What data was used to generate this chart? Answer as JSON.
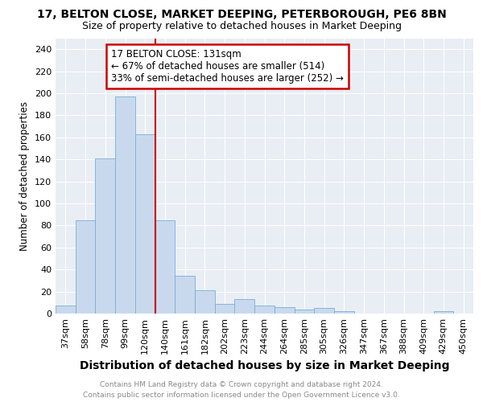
{
  "title1": "17, BELTON CLOSE, MARKET DEEPING, PETERBOROUGH, PE6 8BN",
  "title2": "Size of property relative to detached houses in Market Deeping",
  "xlabel": "Distribution of detached houses by size in Market Deeping",
  "ylabel": "Number of detached properties",
  "categories": [
    "37sqm",
    "58sqm",
    "78sqm",
    "99sqm",
    "120sqm",
    "140sqm",
    "161sqm",
    "182sqm",
    "202sqm",
    "223sqm",
    "244sqm",
    "264sqm",
    "285sqm",
    "305sqm",
    "326sqm",
    "347sqm",
    "367sqm",
    "388sqm",
    "409sqm",
    "429sqm",
    "450sqm"
  ],
  "values": [
    7,
    85,
    141,
    197,
    163,
    85,
    34,
    21,
    9,
    13,
    7,
    6,
    4,
    5,
    2,
    0,
    0,
    0,
    0,
    2,
    0
  ],
  "bar_color": "#c9d9ed",
  "bar_edge_color": "#7aaed6",
  "red_line_x": 4.5,
  "annotation_line1": "17 BELTON CLOSE: 131sqm",
  "annotation_line2": "← 67% of detached houses are smaller (514)",
  "annotation_line3": "33% of semi-detached houses are larger (252) →",
  "annotation_box_color": "#ffffff",
  "annotation_box_edge_color": "#cc0000",
  "red_line_color": "#cc0000",
  "ylim": [
    0,
    250
  ],
  "yticks": [
    0,
    20,
    40,
    60,
    80,
    100,
    120,
    140,
    160,
    180,
    200,
    220,
    240
  ],
  "bg_color": "#e8eef4",
  "grid_color": "#ffffff",
  "footer_line1": "Contains HM Land Registry data © Crown copyright and database right 2024.",
  "footer_line2": "Contains public sector information licensed under the Open Government Licence v3.0.",
  "title1_fontsize": 10,
  "title2_fontsize": 9,
  "xlabel_fontsize": 10,
  "ylabel_fontsize": 8.5,
  "tick_fontsize": 8,
  "footer_fontsize": 6.5,
  "annotation_fontsize": 8.5
}
